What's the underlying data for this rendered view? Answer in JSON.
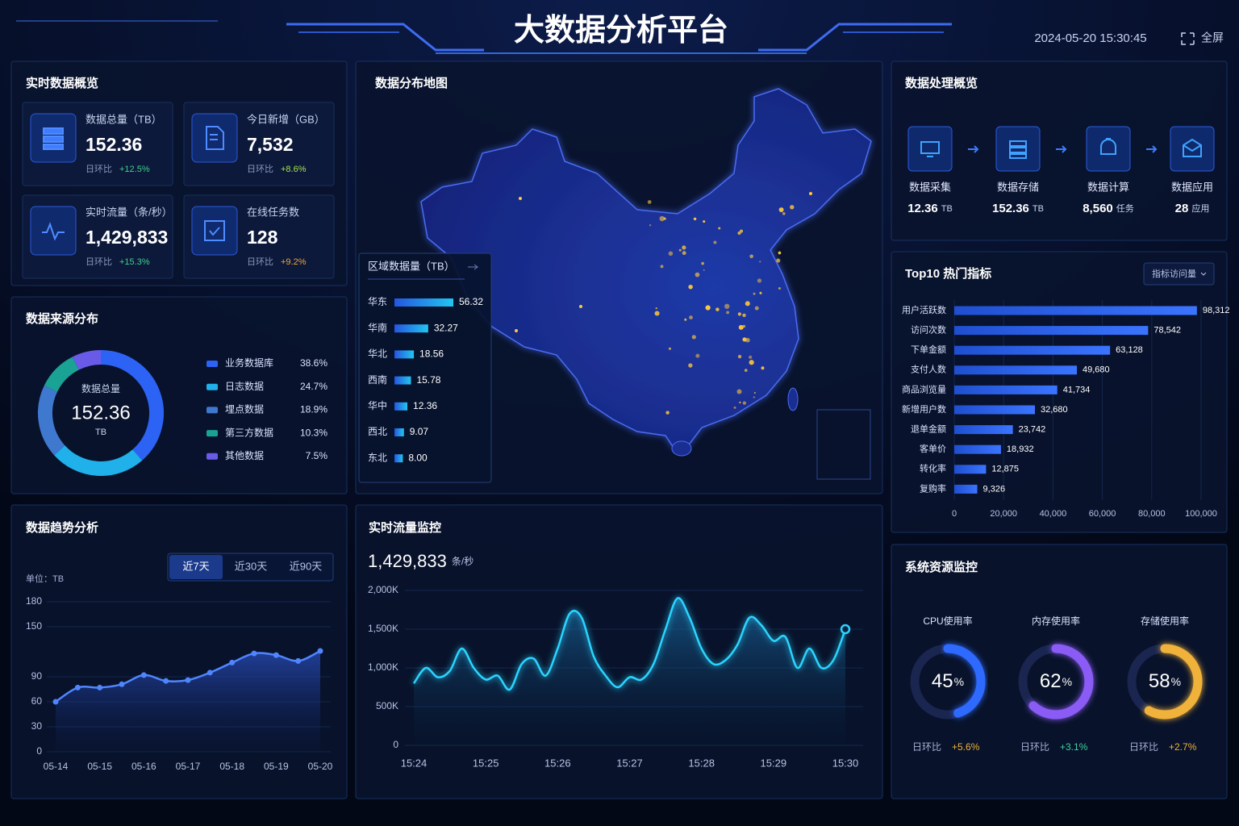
{
  "header": {
    "title": "大数据分析平台",
    "datetime": "2024-05-20 15:30:45",
    "fullscreen": "全屏"
  },
  "overview": {
    "title": "实时数据概览",
    "cards": [
      {
        "label": "数据总量（TB）",
        "value": "152.36",
        "change_label": "日环比",
        "change": "+12.5%",
        "change_color": "#3fd18b"
      },
      {
        "label": "今日新增（GB）",
        "value": "7,532",
        "change_label": "日环比",
        "change": "+8.6%",
        "change_color": "#a6e04a"
      },
      {
        "label": "实时流量（条/秒）",
        "value": "1,429,833",
        "change_label": "日环比",
        "change": "+15.3%",
        "change_color": "#3fd18b"
      },
      {
        "label": "在线任务数",
        "value": "128",
        "change_label": "日环比",
        "change": "+9.2%",
        "change_color": "#f0a43a"
      }
    ]
  },
  "source": {
    "title": "数据来源分布",
    "chart": {
      "type": "donut",
      "center_label": "数据总量",
      "center_value": "152.36",
      "center_unit": "TB",
      "categories": [
        "业务数据库",
        "日志数据",
        "埋点数据",
        "第三方数据",
        "其他数据"
      ],
      "values": [
        38.6,
        24.7,
        18.9,
        10.3,
        7.5
      ],
      "value_labels": [
        "38.6%",
        "24.7%",
        "18.9%",
        "10.3%",
        "7.5%"
      ],
      "colors": [
        "#2d63f5",
        "#20b0ea",
        "#3f78cf",
        "#1aa394",
        "#6a5ae8"
      ]
    }
  },
  "trend": {
    "title": "数据趋势分析",
    "tabs": [
      "近7天",
      "近30天",
      "近90天"
    ],
    "active_tab": 0,
    "chart": {
      "type": "line",
      "y_label": "单位：TB",
      "categories": [
        "05-14",
        null,
        "05-15",
        null,
        "05-16",
        null,
        "05-17",
        null,
        "05-18",
        null,
        "05-19",
        null,
        "05-20"
      ],
      "values": [
        60,
        77,
        77,
        81,
        92,
        85,
        86,
        95,
        107,
        118,
        116,
        109,
        121
      ],
      "color": "#4f86ff",
      "ylim": [
        0,
        180
      ],
      "yticks": [
        0,
        30,
        60,
        90,
        150,
        180
      ]
    }
  },
  "map": {
    "title": "数据分布地图",
    "regions": {
      "title": "区域数据量（TB）",
      "type": "bar",
      "categories": [
        "华东",
        "华南",
        "华北",
        "西南",
        "华中",
        "西北",
        "东北"
      ],
      "values": [
        56.32,
        32.27,
        18.56,
        15.78,
        12.36,
        9.07,
        8.0
      ],
      "value_labels": [
        "56.32",
        "32.27",
        "18.56",
        "15.78",
        "12.36",
        "9.07",
        "8.00"
      ]
    }
  },
  "traffic": {
    "title": "实时流量监控",
    "current": "1,429,833",
    "unit": "条/秒",
    "chart": {
      "type": "area",
      "categories": [
        "15:24",
        null,
        null,
        null,
        null,
        null,
        "15:25",
        null,
        null,
        null,
        null,
        null,
        "15:26",
        null,
        null,
        null,
        null,
        null,
        "15:27",
        null,
        null,
        null,
        null,
        null,
        "15:28",
        null,
        null,
        null,
        null,
        null,
        "15:29",
        null,
        null,
        null,
        null,
        null,
        "15:30"
      ],
      "values": [
        800000,
        1000000,
        880000,
        960000,
        1250000,
        1000000,
        850000,
        900000,
        720000,
        1050000,
        1120000,
        900000,
        1250000,
        1700000,
        1650000,
        1150000,
        900000,
        750000,
        880000,
        850000,
        1050000,
        1500000,
        1900000,
        1650000,
        1250000,
        1050000,
        1100000,
        1300000,
        1650000,
        1550000,
        1350000,
        1400000,
        1000000,
        1250000,
        1000000,
        1100000,
        1500000
      ],
      "color": "#2ad4ff",
      "ylim": [
        0,
        2000000
      ],
      "yticks": [
        0,
        {
          "value": 500000,
          "label": "500K"
        },
        {
          "value": 1000000,
          "label": "1,000K"
        },
        {
          "value": 1500000,
          "label": "1,500K"
        },
        {
          "value": 2000000,
          "label": "2,000K"
        }
      ]
    }
  },
  "processing": {
    "title": "数据处理概览",
    "steps": [
      {
        "name": "数据采集",
        "value": "12.36",
        "unit": "TB"
      },
      {
        "name": "数据存储",
        "value": "152.36",
        "unit": "TB"
      },
      {
        "name": "数据计算",
        "value": "8,560",
        "unit": "任务"
      },
      {
        "name": "数据应用",
        "value": "28",
        "unit": "应用"
      }
    ]
  },
  "top10": {
    "title": "Top10 热门指标",
    "selector": "指标访问量",
    "chart": {
      "type": "hbar",
      "categories": [
        "用户活跃数",
        "访问次数",
        "下单金额",
        "支付人数",
        "商品浏览量",
        "新增用户数",
        "退单金额",
        "客单价",
        "转化率",
        "复购率"
      ],
      "values": [
        98312,
        78542,
        63128,
        49680,
        41734,
        32680,
        23742,
        18932,
        12875,
        9326
      ],
      "value_labels": [
        "98,312",
        "78,542",
        "63,128",
        "49,680",
        "41,734",
        "32,680",
        "23,742",
        "18,932",
        "12,875",
        "9,326"
      ],
      "color": "#2d63f0",
      "xlim": [
        0,
        100000
      ],
      "xticks": [
        0,
        {
          "value": 20000,
          "label": "20,000"
        },
        {
          "value": 40000,
          "label": "40,000"
        },
        {
          "value": 60000,
          "label": "60,000"
        },
        {
          "value": 80000,
          "label": "80,000"
        },
        {
          "value": 100000,
          "label": "100,000"
        }
      ]
    }
  },
  "resources": {
    "title": "系统资源监控",
    "gauges": [
      {
        "name": "CPU使用率",
        "value": 45,
        "unit": "%",
        "change_label": "日环比",
        "change": "+5.6%",
        "color": "#2f6bff",
        "change_color": "#f0b23a"
      },
      {
        "name": "内存使用率",
        "value": 62,
        "unit": "%",
        "change_label": "日环比",
        "change": "+3.1%",
        "color": "#8a5cf5",
        "change_color": "#3fd1a0"
      },
      {
        "name": "存储使用率",
        "value": 58,
        "unit": "%",
        "change_label": "日环比",
        "change": "+2.7%",
        "color": "#f0b23a",
        "change_color": "#f0b23a"
      }
    ]
  }
}
